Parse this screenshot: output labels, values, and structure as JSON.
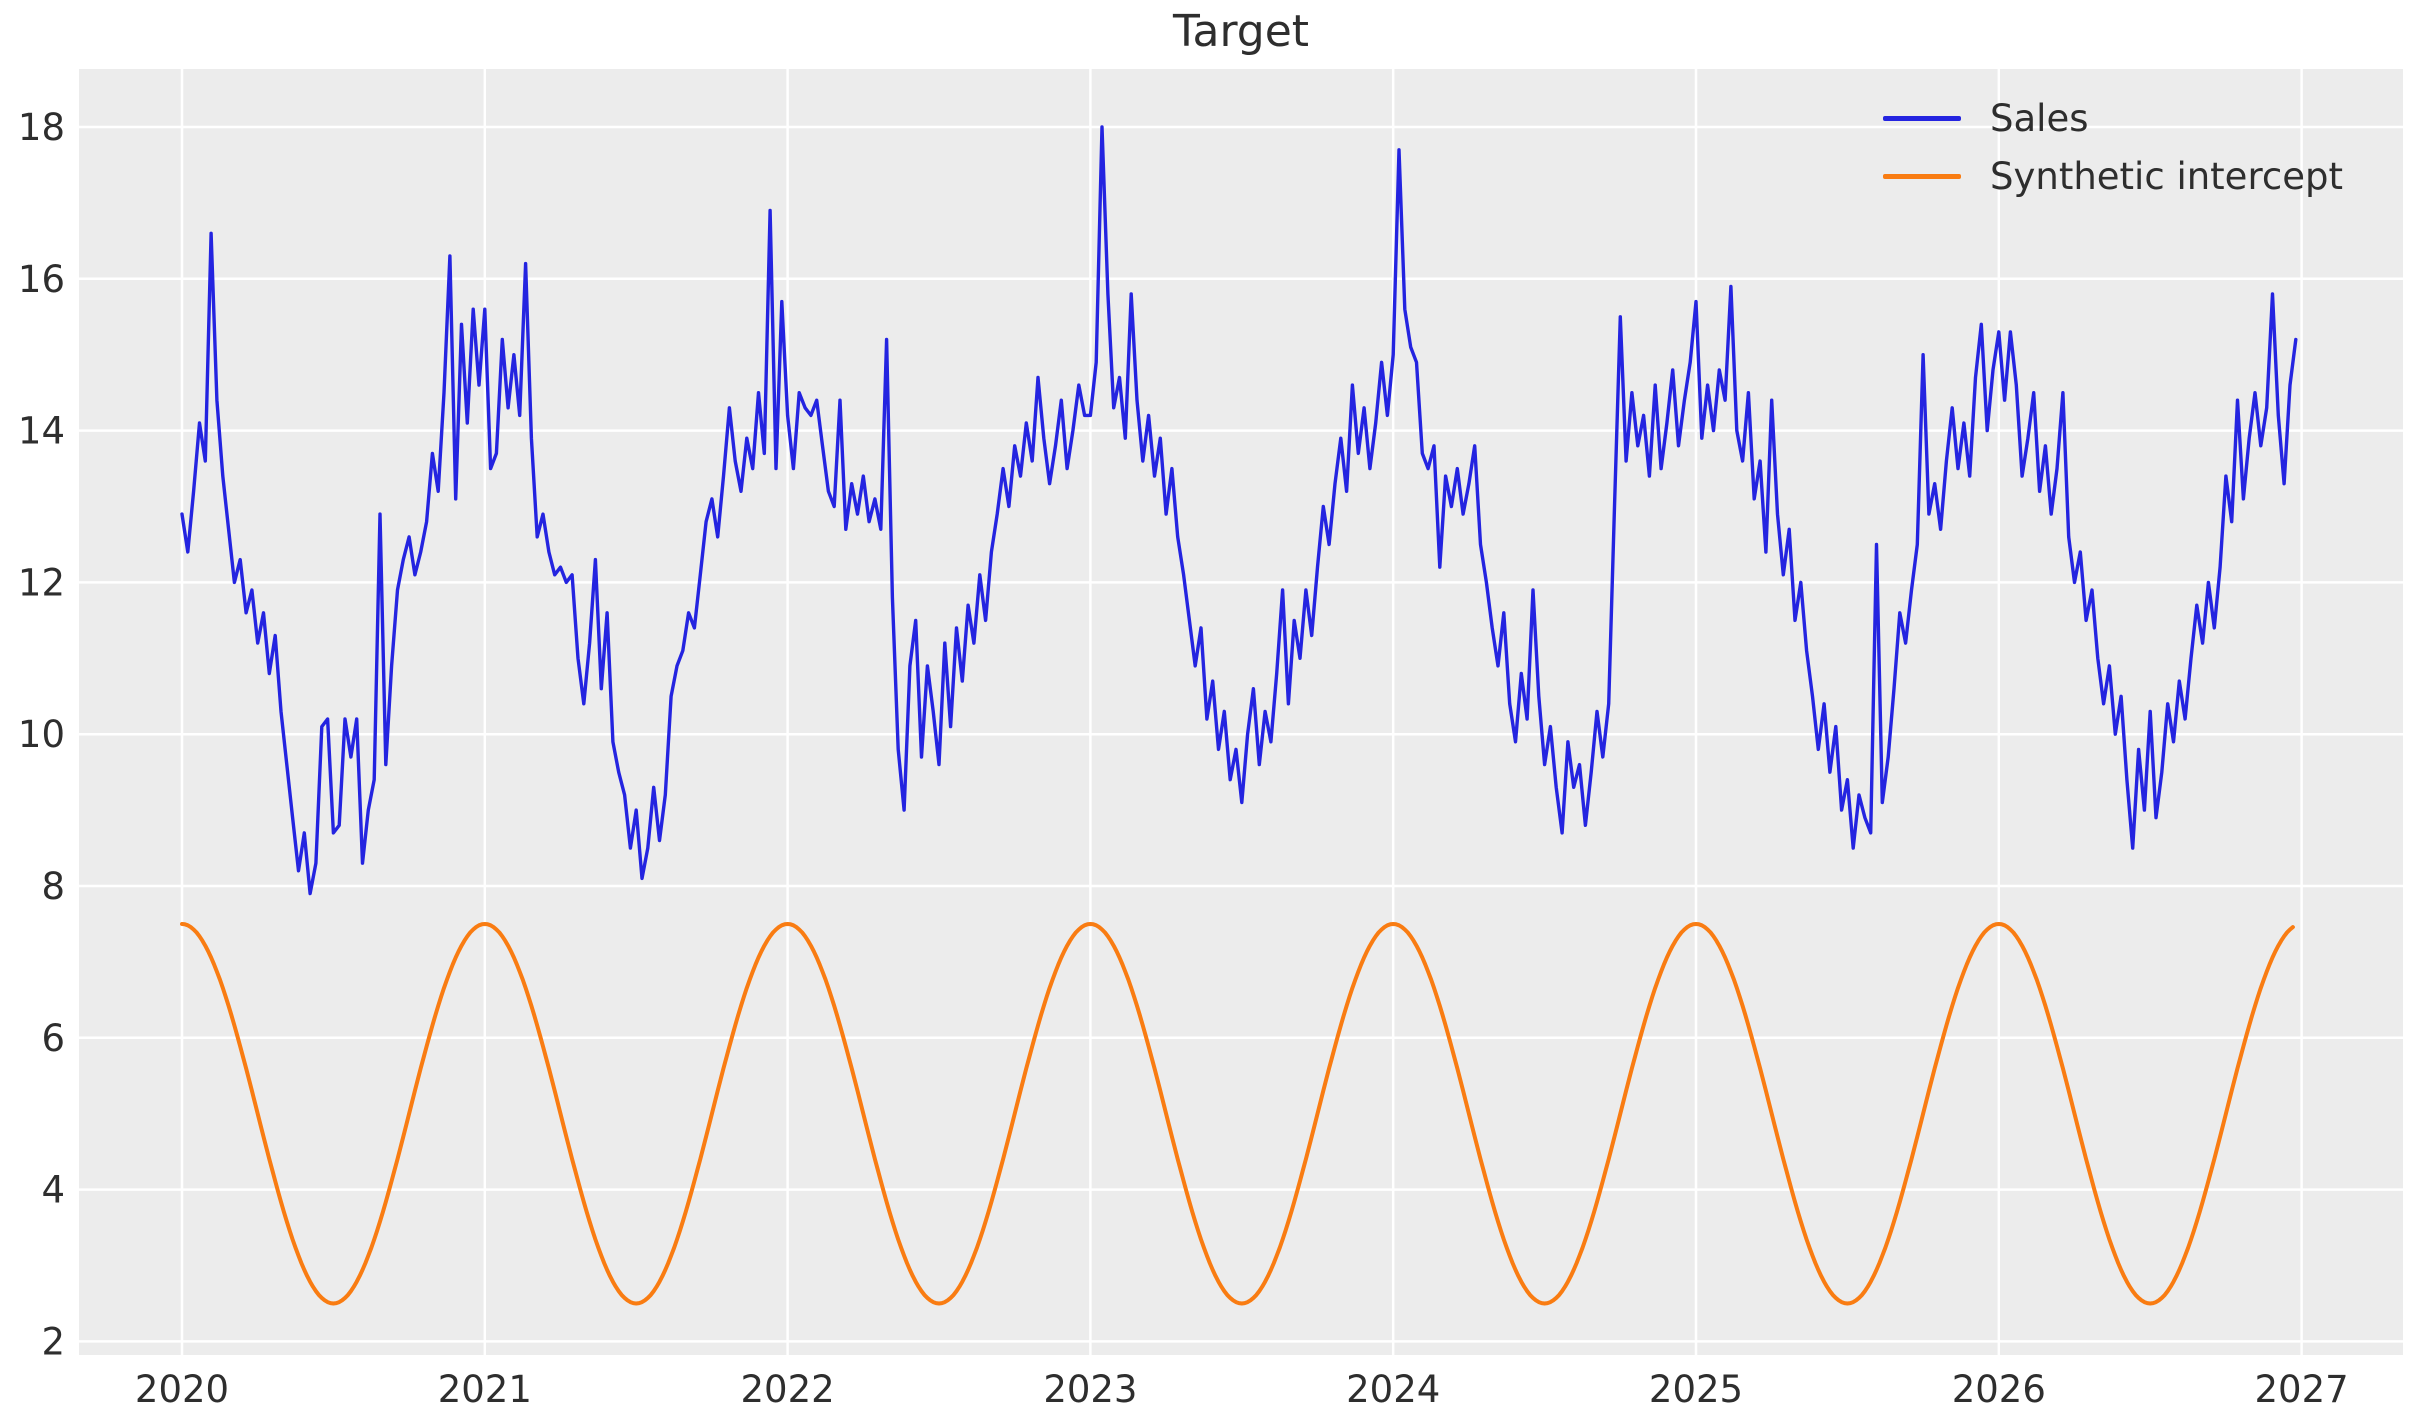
{
  "title": "Target",
  "legend": {
    "position": "upper right",
    "items": [
      {
        "label": "Sales",
        "color": "#2424e0"
      },
      {
        "label": "Synthetic intercept",
        "color": "#f97c12"
      }
    ]
  },
  "colors": {
    "figure_background": "#ffffff",
    "plot_background": "#ececec",
    "gridline": "#ffffff",
    "text": "#2e2e2e",
    "sales_line": "#2424e0",
    "intercept_line": "#f97c12"
  },
  "chart_data": {
    "type": "line",
    "title": "Target",
    "xlabel": "",
    "ylabel": "",
    "grid": true,
    "legend_position": "upper right",
    "x_ticks": [
      2020,
      2021,
      2022,
      2023,
      2024,
      2025,
      2026,
      2027
    ],
    "y_ticks": [
      2,
      4,
      6,
      8,
      10,
      12,
      14,
      16,
      18
    ],
    "xlim": [
      2019.66,
      2027.33
    ],
    "ylim": [
      1.84,
      18.77
    ],
    "series": [
      {
        "name": "Sales",
        "color": "#2424e0",
        "sampling": "weekly",
        "x_start": 2020.0,
        "points_per_year": 52,
        "values_by_year": {
          "2020": [
            12.9,
            12.4,
            13.2,
            14.1,
            13.6,
            16.6,
            14.4,
            13.4,
            12.7,
            12.0,
            12.3,
            11.6,
            11.9,
            11.2,
            11.6,
            10.8,
            11.3,
            10.3,
            9.6,
            8.9,
            8.2,
            8.7,
            7.9,
            8.3,
            10.1,
            10.2,
            8.7,
            8.8,
            10.2,
            9.7,
            10.2,
            8.3,
            9.0,
            9.4,
            12.9,
            9.6,
            10.9,
            11.9,
            12.3,
            12.6,
            12.1,
            12.4,
            12.8,
            13.7,
            13.2,
            14.5,
            16.3,
            13.1,
            15.4,
            14.1,
            15.6,
            14.6
          ],
          "2021": [
            15.6,
            13.5,
            13.7,
            15.2,
            14.3,
            15.0,
            14.2,
            16.2,
            13.9,
            12.6,
            12.9,
            12.4,
            12.1,
            12.2,
            12.0,
            12.1,
            11.0,
            10.4,
            11.2,
            12.3,
            10.6,
            11.6,
            9.9,
            9.5,
            9.2,
            8.5,
            9.0,
            8.1,
            8.5,
            9.3,
            8.6,
            9.2,
            10.5,
            10.9,
            11.1,
            11.6,
            11.4,
            12.1,
            12.8,
            13.1,
            12.6,
            13.4,
            14.3,
            13.6,
            13.2,
            13.9,
            13.5,
            14.5,
            13.7,
            16.9,
            13.5,
            15.7
          ],
          "2022": [
            14.2,
            13.5,
            14.5,
            14.3,
            14.2,
            14.4,
            13.8,
            13.2,
            13.0,
            14.4,
            12.7,
            13.3,
            12.9,
            13.4,
            12.8,
            13.1,
            12.7,
            15.2,
            11.8,
            9.8,
            9.0,
            10.9,
            11.5,
            9.7,
            10.9,
            10.3,
            9.6,
            11.2,
            10.1,
            11.4,
            10.7,
            11.7,
            11.2,
            12.1,
            11.5,
            12.4,
            12.9,
            13.5,
            13.0,
            13.8,
            13.4,
            14.1,
            13.6,
            14.7,
            13.9,
            13.3,
            13.8,
            14.4,
            13.5,
            14.0,
            14.6,
            14.2
          ],
          "2023": [
            14.2,
            14.9,
            18.0,
            15.8,
            14.3,
            14.7,
            13.9,
            15.8,
            14.4,
            13.6,
            14.2,
            13.4,
            13.9,
            12.9,
            13.5,
            12.6,
            12.1,
            11.5,
            10.9,
            11.4,
            10.2,
            10.7,
            9.8,
            10.3,
            9.4,
            9.8,
            9.1,
            10.0,
            10.6,
            9.6,
            10.3,
            9.9,
            10.8,
            11.9,
            10.4,
            11.5,
            11.0,
            11.9,
            11.3,
            12.2,
            13.0,
            12.5,
            13.3,
            13.9,
            13.2,
            14.6,
            13.7,
            14.3,
            13.5,
            14.1,
            14.9,
            14.2
          ],
          "2024": [
            15.0,
            17.7,
            15.6,
            15.1,
            14.9,
            13.7,
            13.5,
            13.8,
            12.2,
            13.4,
            13.0,
            13.5,
            12.9,
            13.3,
            13.8,
            12.5,
            12.0,
            11.4,
            10.9,
            11.6,
            10.4,
            9.9,
            10.8,
            10.2,
            11.9,
            10.5,
            9.6,
            10.1,
            9.3,
            8.7,
            9.9,
            9.3,
            9.6,
            8.8,
            9.5,
            10.3,
            9.7,
            10.4,
            13.0,
            15.5,
            13.6,
            14.5,
            13.8,
            14.2,
            13.4,
            14.6,
            13.5,
            14.1,
            14.8,
            13.8,
            14.4,
            14.9
          ],
          "2025": [
            15.7,
            13.9,
            14.6,
            14.0,
            14.8,
            14.4,
            15.9,
            14.0,
            13.6,
            14.5,
            13.1,
            13.6,
            12.4,
            14.4,
            12.9,
            12.1,
            12.7,
            11.5,
            12.0,
            11.1,
            10.5,
            9.8,
            10.4,
            9.5,
            10.1,
            9.0,
            9.4,
            8.5,
            9.2,
            8.9,
            8.7,
            12.5,
            9.1,
            9.7,
            10.6,
            11.6,
            11.2,
            11.9,
            12.5,
            15.0,
            12.9,
            13.3,
            12.7,
            13.6,
            14.3,
            13.5,
            14.1,
            13.4,
            14.7,
            15.4,
            14.0,
            14.8
          ],
          "2026": [
            15.3,
            14.4,
            15.3,
            14.6,
            13.4,
            13.9,
            14.5,
            13.2,
            13.8,
            12.9,
            13.5,
            14.5,
            12.6,
            12.0,
            12.4,
            11.5,
            11.9,
            11.0,
            10.4,
            10.9,
            10.0,
            10.5,
            9.4,
            8.5,
            9.8,
            9.0,
            10.3,
            8.9,
            9.5,
            10.4,
            9.9,
            10.7,
            10.2,
            11.0,
            11.7,
            11.2,
            12.0,
            11.4,
            12.2,
            13.4,
            12.8,
            14.4,
            13.1,
            13.9,
            14.5,
            13.8,
            14.3,
            15.8,
            14.2,
            13.3,
            14.6,
            15.2
          ]
        }
      },
      {
        "name": "Synthetic intercept",
        "color": "#f97c12",
        "sampling": "continuous cosine",
        "function": "value(t) = base + amplitude * cos(2*pi*(t - 2020))",
        "base": 5.0,
        "amplitude": 2.5,
        "period_years": 1.0,
        "min": 2.5,
        "max": 7.5,
        "t_start": 2020.0,
        "t_end": 2026.98,
        "monthly_reference_values": [
          7.5,
          7.17,
          6.25,
          5.0,
          3.75,
          2.83,
          2.5,
          2.83,
          3.75,
          5.0,
          6.25,
          7.17
        ]
      }
    ]
  }
}
